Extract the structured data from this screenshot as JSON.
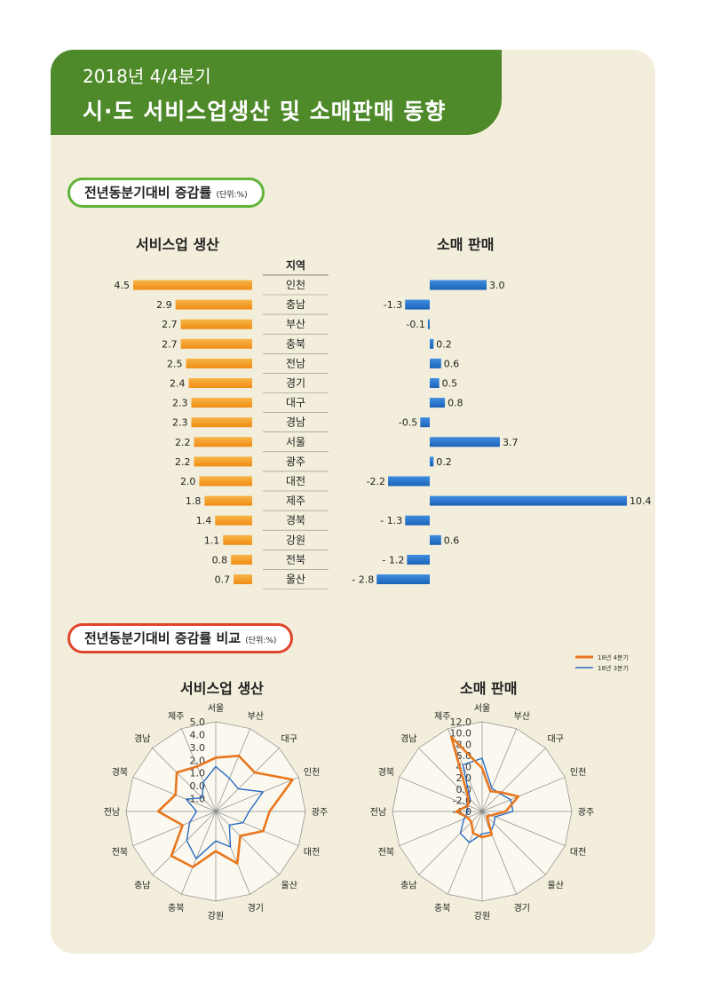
{
  "header": {
    "year_label": "2018년 4/4분기",
    "title": "시·도 서비스업생산 및 소매판매 동향"
  },
  "section1": {
    "label": "전년동분기대비 증감률",
    "unit": "(단위:%)",
    "left_title": "서비스업 생산",
    "right_title": "소매 판매",
    "region_header": "지역"
  },
  "section2": {
    "label": "전년동분기대비 증감률 비교",
    "unit": "(단위:%)",
    "left_title": "서비스업 생산",
    "right_title": "소매 판매"
  },
  "colors": {
    "orange": "#f08c14",
    "blue": "#1a62b8",
    "green": "#4e8a2a",
    "radar_orange": "#e8761e",
    "radar_blue": "#2a6cc4"
  },
  "chart_data": [
    {
      "type": "bar",
      "title": "서비스업 생산",
      "categories": [
        "인천",
        "충남",
        "부산",
        "충북",
        "전남",
        "경기",
        "대구",
        "경남",
        "서울",
        "광주",
        "대전",
        "제주",
        "경북",
        "강원",
        "전북",
        "울산"
      ],
      "values": [
        4.5,
        2.9,
        2.7,
        2.7,
        2.5,
        2.4,
        2.3,
        2.3,
        2.2,
        2.2,
        2.0,
        1.8,
        1.4,
        1.1,
        0.8,
        0.7
      ],
      "labels": [
        "4.5",
        "2.9",
        "2.7",
        "2.7",
        "2.5",
        "2.4",
        "2.3",
        "2.3",
        "2.2",
        "2.2",
        "2.0",
        "1.8",
        "1.4",
        "1.1",
        "0.8",
        "0.7"
      ]
    },
    {
      "type": "bar",
      "title": "소매 판매",
      "categories": [
        "인천",
        "충남",
        "부산",
        "충북",
        "전남",
        "경기",
        "대구",
        "경남",
        "서울",
        "광주",
        "대전",
        "제주",
        "경북",
        "강원",
        "전북",
        "울산"
      ],
      "values": [
        3.0,
        -1.3,
        -0.1,
        0.2,
        0.6,
        0.5,
        0.8,
        -0.5,
        3.7,
        0.2,
        -2.2,
        10.4,
        -1.3,
        0.6,
        -1.2,
        -2.8
      ],
      "labels": [
        "3.0",
        "-1.3",
        "-0.1",
        "0.2",
        "0.6",
        "0.5",
        "0.8",
        "-0.5",
        "3.7",
        "0.2",
        "-2.2",
        "10.4",
        "- 1.3",
        "0.6",
        "- 1.2",
        "- 2.8"
      ]
    },
    {
      "type": "radar",
      "title": "서비스업 생산",
      "axes": [
        "서울",
        "부산",
        "대구",
        "인천",
        "광주",
        "대전",
        "울산",
        "경기",
        "강원",
        "충북",
        "충남",
        "전북",
        "전남",
        "경북",
        "경남",
        "제주"
      ],
      "rlim": [
        -2.0,
        5.0
      ],
      "ticks": [
        "5.0",
        "4.0",
        "3.0",
        "2.0",
        "1.0",
        "0.0",
        "-1.0"
      ],
      "series": [
        {
          "name": "18년 4분기",
          "values": [
            2.2,
            2.7,
            2.3,
            4.5,
            2.2,
            2.0,
            0.7,
            2.4,
            1.1,
            2.7,
            2.9,
            0.8,
            2.5,
            1.4,
            2.3,
            1.8
          ]
        },
        {
          "name": "18년 3분기",
          "values": [
            1.5,
            0.8,
            0.5,
            2.0,
            0.6,
            0.3,
            -0.5,
            1.0,
            0.3,
            2.0,
            1.2,
            0.2,
            -0.5,
            0.5,
            -0.5,
            0.5
          ]
        }
      ]
    },
    {
      "type": "radar",
      "title": "소매 판매",
      "axes": [
        "서울",
        "부산",
        "대구",
        "인천",
        "광주",
        "대전",
        "울산",
        "경기",
        "강원",
        "충북",
        "충남",
        "전북",
        "전남",
        "경북",
        "경남",
        "제주"
      ],
      "rlim": [
        -4.0,
        12.0
      ],
      "ticks": [
        "12.0",
        "10.0",
        "8.0",
        "6.0",
        "4.0",
        "2.0",
        "0.0",
        "-2.0",
        "-4.0"
      ],
      "series": [
        {
          "name": "18년 4분기",
          "values": [
            3.7,
            -0.1,
            0.8,
            3.0,
            0.2,
            -2.2,
            -2.8,
            0.5,
            0.6,
            0.2,
            -1.3,
            -1.2,
            0.6,
            -1.3,
            -0.5,
            10.4
          ]
        },
        {
          "name": "18년 3분기",
          "values": [
            5.5,
            0.5,
            0.5,
            1.5,
            1.5,
            -1.5,
            -1.0,
            0.0,
            0.0,
            2.0,
            1.5,
            -0.5,
            -1.5,
            -1.0,
            -1.0,
            5.0
          ]
        }
      ]
    }
  ],
  "legend": {
    "items": [
      "18년 4분기",
      "18년 3분기"
    ],
    "placement": "top-right"
  }
}
